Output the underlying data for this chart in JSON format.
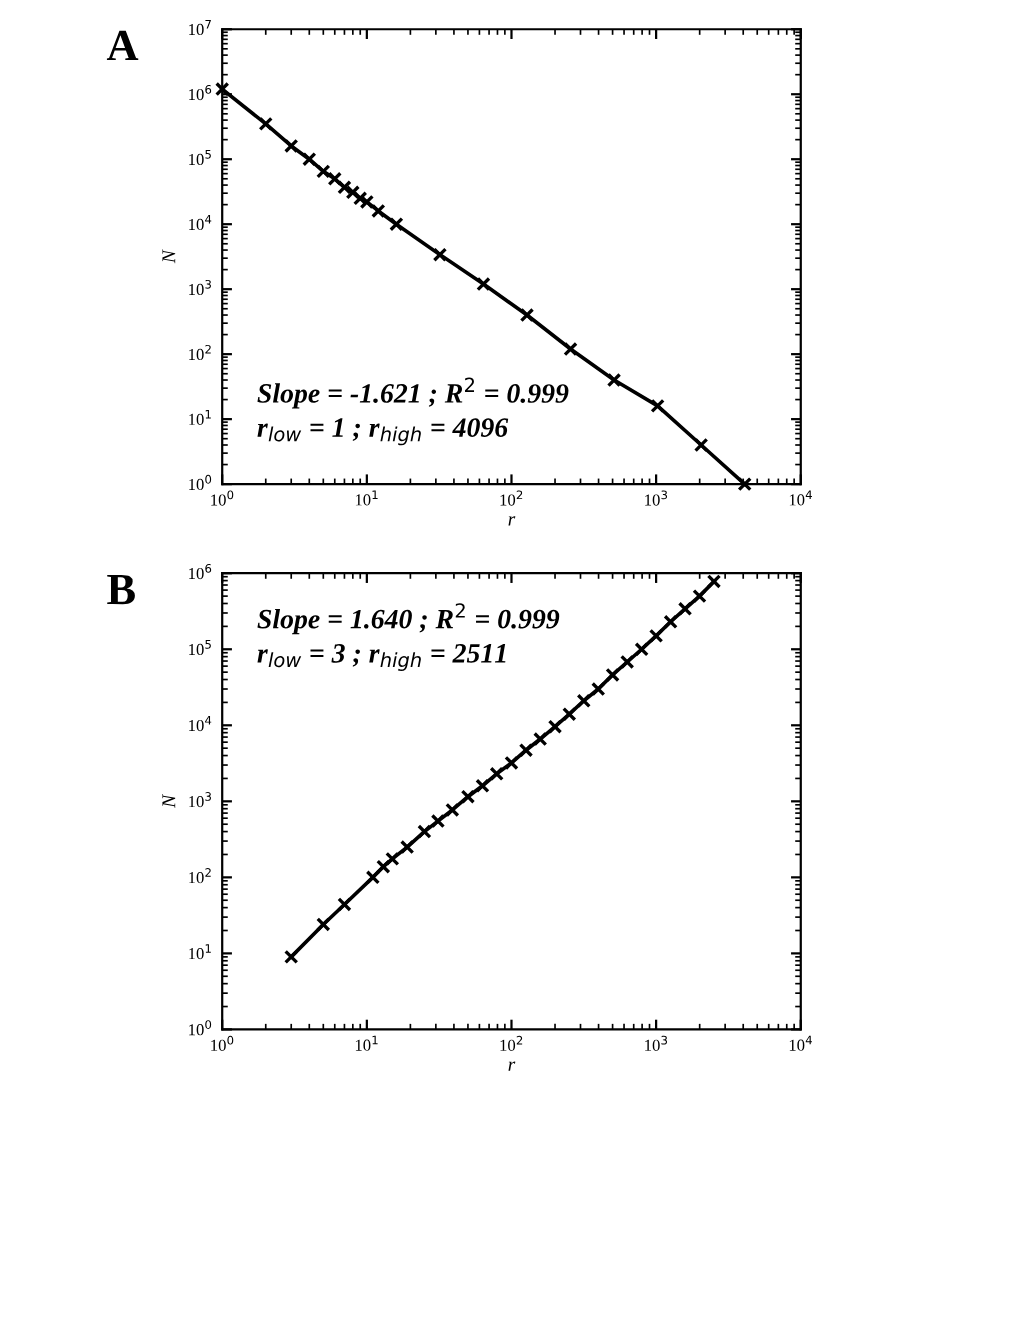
{
  "chart_data": [
    {
      "type": "line",
      "title": "A",
      "xlabel": "r",
      "ylabel": "N",
      "log": "xy",
      "marker": "cross",
      "line_style": "solid",
      "grid": false,
      "legend": false,
      "x": [
        1,
        2,
        3,
        4,
        5,
        6,
        7,
        8,
        9,
        10,
        12,
        16,
        32,
        64,
        128,
        256,
        512,
        1024,
        2048,
        4096
      ],
      "series": [
        {
          "color": "#000000",
          "values": [
            1200000,
            350000,
            160000,
            100000,
            65000,
            50000,
            37000,
            31000,
            25000,
            22000,
            16000,
            10000,
            3400,
            1200,
            400,
            120,
            40,
            16,
            4,
            1
          ]
        }
      ],
      "xlim": [
        1,
        10000
      ],
      "ylim": [
        1,
        10000000
      ],
      "xticks": [
        {
          "value": 1,
          "label": "10$^{0}$"
        },
        {
          "value": 10,
          "label": "10$^{1}$"
        },
        {
          "value": 100,
          "label": "10$^{2}$"
        },
        {
          "value": 1000,
          "label": "10$^{3}$"
        },
        {
          "value": 10000,
          "label": "10$^{4}$"
        }
      ],
      "yticks": [
        {
          "value": 1,
          "label": "10$^{0}$"
        },
        {
          "value": 10,
          "label": "10$^{1}$"
        },
        {
          "value": 100,
          "label": "10$^{2}$"
        },
        {
          "value": 1000,
          "label": "10$^{3}$"
        },
        {
          "value": 10000,
          "label": "10$^{4}$"
        },
        {
          "value": 100000,
          "label": "10$^{5}$"
        },
        {
          "value": 1000000,
          "label": "10$^{6}$"
        },
        {
          "value": 10000000,
          "label": "10$^{7}$"
        }
      ],
      "annotations": [
        "Slope = -1.621 ; R$^{2}$ = 0.999",
        "r$_{low}$ = 1 ; r$_{high}$ = 4096"
      ]
    },
    {
      "type": "line",
      "title": "B",
      "xlabel": "r",
      "ylabel": "N",
      "log": "xy",
      "marker": "cross",
      "line_style": "solid",
      "grid": false,
      "legend": false,
      "x": [
        3,
        5,
        7,
        11,
        13,
        15,
        19,
        25,
        31,
        39,
        50,
        63,
        79,
        100,
        126,
        158,
        200,
        251,
        316,
        398,
        500,
        631,
        794,
        1000,
        1259,
        1585,
        1995,
        2511
      ],
      "series": [
        {
          "color": "#000000",
          "values": [
            9,
            24,
            44,
            100,
            138,
            175,
            250,
            400,
            550,
            770,
            1150,
            1600,
            2300,
            3200,
            4700,
            6600,
            9600,
            14000,
            21000,
            30000,
            46000,
            68000,
            100000,
            150000,
            230000,
            340000,
            500000,
            780000
          ]
        }
      ],
      "xlim": [
        1,
        10000
      ],
      "ylim": [
        1,
        1000000
      ],
      "xticks": [
        {
          "value": 1,
          "label": "10$^{0}$"
        },
        {
          "value": 10,
          "label": "10$^{1}$"
        },
        {
          "value": 100,
          "label": "10$^{2}$"
        },
        {
          "value": 1000,
          "label": "10$^{3}$"
        },
        {
          "value": 10000,
          "label": "10$^{4}$"
        }
      ],
      "yticks": [
        {
          "value": 1,
          "label": "10$^{0}$"
        },
        {
          "value": 10,
          "label": "10$^{1}$"
        },
        {
          "value": 100,
          "label": "10$^{2}$"
        },
        {
          "value": 1000,
          "label": "10$^{3}$"
        },
        {
          "value": 10000,
          "label": "10$^{4}$"
        },
        {
          "value": 100000,
          "label": "10$^{5}$"
        },
        {
          "value": 1000000,
          "label": "10$^{6}$"
        }
      ],
      "annotations": [
        "Slope = 1.640 ; R$^{2}$ = 0.999",
        "r$_{low}$ = 3 ; r$_{high}$ = 2511"
      ]
    }
  ]
}
